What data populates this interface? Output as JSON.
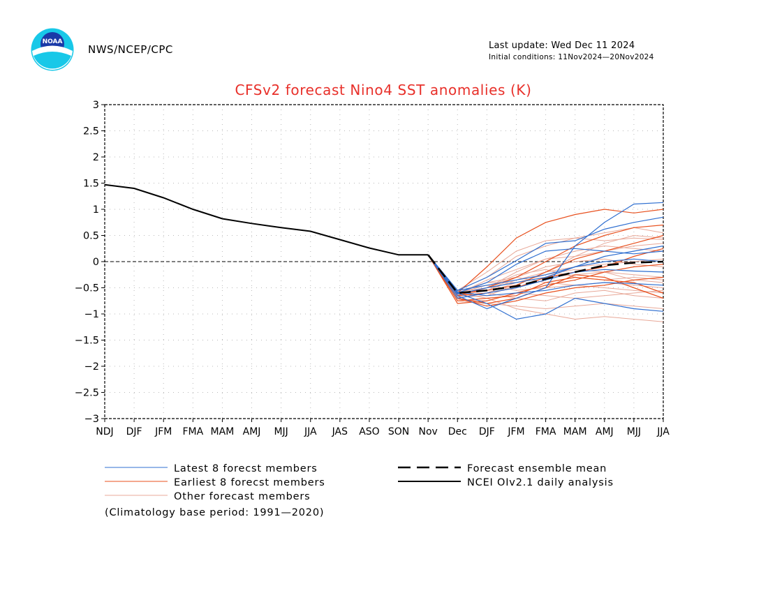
{
  "header": {
    "agency": "NWS/NCEP/CPC",
    "last_update": "Last update: Wed Dec 11 2024",
    "initial_conditions": "Initial conditions: 11Nov2024—20Nov2024",
    "logo_text": "NOAA"
  },
  "colors": {
    "title": "#e8302a",
    "latest": "#2f6fd0",
    "earliest": "#e8501e",
    "other": "#e8a898",
    "analysis": "#000000"
  },
  "chart_data": {
    "type": "line",
    "title": "CFSv2 forecast Nino4 SST anomalies (K)",
    "categories": [
      "NDJ",
      "DJF",
      "JFM",
      "FMA",
      "MAM",
      "AMJ",
      "MJJ",
      "JJA",
      "JAS",
      "ASO",
      "SON",
      "Nov",
      "Dec",
      "DJF",
      "JFM",
      "FMA",
      "MAM",
      "AMJ",
      "MJJ",
      "JJA"
    ],
    "ylim": [
      -3,
      3
    ],
    "yticks": [
      "3",
      "2.5",
      "2",
      "1.5",
      "1",
      "0.5",
      "0",
      "−0.5",
      "−1",
      "−1.5",
      "−2",
      "−2.5",
      "−3"
    ],
    "ytick_values": [
      3,
      2.5,
      2,
      1.5,
      1,
      0.5,
      0,
      -0.5,
      -1,
      -1.5,
      -2,
      -2.5,
      -3
    ],
    "grid": true,
    "analysis": {
      "name": "NCEI OIv2.1 daily analysis",
      "values": [
        1.47,
        1.4,
        1.22,
        1.0,
        0.82,
        0.73,
        0.65,
        0.58,
        0.42,
        0.26,
        0.13,
        0.13
      ]
    },
    "ensemble_mean": {
      "name": "Forecast ensemble mean",
      "values": [
        0.13,
        -0.6,
        -0.55,
        -0.47,
        -0.33,
        -0.2,
        -0.07,
        -0.02,
        0.0
      ]
    },
    "latest_members": {
      "name": "Latest 8 forecst members",
      "series": [
        [
          0.13,
          -0.55,
          -0.3,
          0.02,
          0.35,
          0.4,
          0.62,
          0.75,
          0.85
        ],
        [
          0.13,
          -0.6,
          -0.8,
          -1.1,
          -1.0,
          -0.7,
          -0.8,
          -0.9,
          -0.95
        ],
        [
          0.13,
          -0.65,
          -0.9,
          -0.7,
          -0.5,
          0.3,
          0.75,
          1.1,
          1.13
        ],
        [
          0.13,
          -0.62,
          -0.5,
          -0.4,
          -0.3,
          -0.1,
          0.1,
          0.2,
          0.3
        ],
        [
          0.13,
          -0.58,
          -0.65,
          -0.6,
          -0.55,
          -0.45,
          -0.4,
          -0.42,
          -0.45
        ],
        [
          0.13,
          -0.6,
          -0.4,
          -0.05,
          0.2,
          0.25,
          0.2,
          0.15,
          0.2
        ],
        [
          0.13,
          -0.7,
          -0.6,
          -0.5,
          -0.35,
          -0.2,
          -0.15,
          -0.18,
          -0.2
        ],
        [
          0.13,
          -0.55,
          -0.45,
          -0.35,
          -0.25,
          -0.1,
          0.0,
          0.05,
          0.0
        ]
      ]
    },
    "earliest_members": {
      "name": "Earliest 8 forecst members",
      "series": [
        [
          0.13,
          -0.6,
          -0.1,
          0.45,
          0.75,
          0.9,
          1.0,
          0.93,
          1.0
        ],
        [
          0.13,
          -0.7,
          -0.8,
          -0.7,
          -0.5,
          -0.25,
          -0.3,
          -0.5,
          -0.7
        ],
        [
          0.13,
          -0.65,
          -0.5,
          -0.3,
          0.0,
          0.3,
          0.5,
          0.65,
          0.7
        ],
        [
          0.13,
          -0.75,
          -0.7,
          -0.65,
          -0.4,
          -0.3,
          -0.35,
          -0.4,
          -0.6
        ],
        [
          0.13,
          -0.6,
          -0.55,
          -0.45,
          -0.2,
          0.05,
          0.2,
          0.35,
          0.5
        ],
        [
          0.13,
          -0.8,
          -0.75,
          -0.6,
          -0.45,
          -0.35,
          -0.2,
          -0.1,
          -0.05
        ],
        [
          0.13,
          -0.65,
          -0.6,
          -0.5,
          -0.3,
          -0.2,
          -0.1,
          0.1,
          0.25
        ],
        [
          0.13,
          -0.7,
          -0.85,
          -0.75,
          -0.6,
          -0.5,
          -0.45,
          -0.35,
          -0.3
        ]
      ]
    },
    "other_members": {
      "name": "Other forecast members",
      "series": [
        [
          0.13,
          -0.55,
          -0.2,
          0.2,
          0.4,
          0.45,
          0.55,
          0.65,
          0.55
        ],
        [
          0.13,
          -0.6,
          -0.7,
          -0.9,
          -1.0,
          -1.1,
          -1.05,
          -1.1,
          -1.15
        ],
        [
          0.13,
          -0.65,
          -0.5,
          -0.2,
          0.05,
          0.1,
          0.2,
          0.3,
          0.35
        ],
        [
          0.13,
          -0.6,
          -0.4,
          -0.4,
          -0.3,
          -0.25,
          -0.2,
          -0.35,
          -0.4
        ],
        [
          0.13,
          -0.7,
          -0.6,
          -0.7,
          -0.75,
          -0.6,
          -0.55,
          -0.65,
          -0.7
        ],
        [
          0.13,
          -0.55,
          -0.3,
          0.1,
          0.3,
          0.45,
          0.4,
          0.45,
          0.42
        ],
        [
          0.13,
          -0.65,
          -0.55,
          -0.3,
          -0.1,
          0.0,
          0.05,
          -0.05,
          -0.1
        ],
        [
          0.13,
          -0.75,
          -0.8,
          -0.85,
          -0.9,
          -0.85,
          -0.8,
          -0.85,
          -0.9
        ],
        [
          0.13,
          -0.6,
          -0.45,
          -0.55,
          -0.5,
          -0.45,
          -0.5,
          -0.55,
          -0.6
        ],
        [
          0.13,
          -0.62,
          -0.35,
          -0.15,
          0.05,
          0.2,
          0.3,
          0.25,
          0.2
        ],
        [
          0.13,
          -0.68,
          -0.65,
          -0.45,
          -0.2,
          -0.1,
          -0.05,
          0.0,
          0.05
        ],
        [
          0.13,
          -0.58,
          -0.5,
          -0.25,
          -0.15,
          -0.3,
          -0.35,
          -0.3,
          -0.35
        ],
        [
          0.13,
          -0.72,
          -0.75,
          -0.6,
          -0.65,
          -0.7,
          -0.65,
          -0.6,
          -0.55
        ],
        [
          0.13,
          -0.63,
          -0.55,
          -0.35,
          -0.2,
          0.1,
          0.35,
          0.5,
          0.45
        ],
        [
          0.13,
          -0.57,
          -0.4,
          -0.3,
          -0.4,
          -0.45,
          -0.4,
          -0.45,
          -0.5
        ],
        [
          0.13,
          -0.66,
          -0.6,
          -0.4,
          -0.25,
          -0.15,
          -0.2,
          -0.25,
          -0.3
        ]
      ]
    },
    "footnote": "(Climatology base period: 1991—2020)"
  }
}
